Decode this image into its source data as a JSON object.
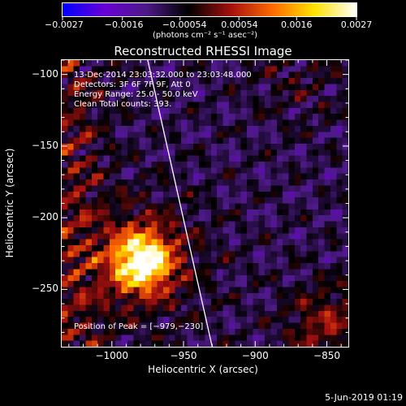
{
  "chart_data": {
    "type": "heatmap",
    "title": "Reconstructed RHESSI Image",
    "xlabel": "Heliocentric X (arcsec)",
    "ylabel": "Heliocentric Y (arcsec)",
    "xlim": [
      -1035,
      -835
    ],
    "ylim": [
      -290,
      -90
    ],
    "x_ticks": [
      -1000,
      -950,
      -900,
      -850
    ],
    "x_tick_labels": [
      "−1000",
      "−950",
      "−900",
      "−850"
    ],
    "y_ticks": [
      -100,
      -150,
      -200,
      -250
    ],
    "y_tick_labels": [
      "−100",
      "−150",
      "−200",
      "−250"
    ],
    "colorbar": {
      "ticks": [
        -0.0027,
        -0.0016,
        -0.00054,
        0.00054,
        0.0016,
        0.0027
      ],
      "tick_labels": [
        "−0.0027",
        "−0.0016",
        "−0.00054",
        "0.00054",
        "0.0016",
        "0.0027"
      ],
      "unit_label": "(photons cm⁻² s⁻¹ asec⁻²)",
      "colors": [
        "#0000ff",
        "#6a00d6",
        "#4d1a86",
        "#000000",
        "#a31010",
        "#ff6a00",
        "#ffe400",
        "#ffffff"
      ]
    },
    "peak": {
      "x": -979,
      "y": -230
    },
    "annotations": {
      "time": "13-Dec-2014 23:03:32.000 to 23:03:48.000",
      "detectors": "Detectors: 3F 6F 7F 9F, Att 0",
      "energy": "Energy Range: 25.0 - 50.0 keV",
      "clean": "Clean     Total counts: 393.",
      "peak_text": "Position of Peak = [−979,−230]"
    },
    "limb_line": {
      "color": "#ffffff",
      "points": [
        [
          -975,
          -90
        ],
        [
          -930,
          -290
        ]
      ]
    }
  },
  "footer": {
    "date": "5-Jun-2019 01:19"
  }
}
